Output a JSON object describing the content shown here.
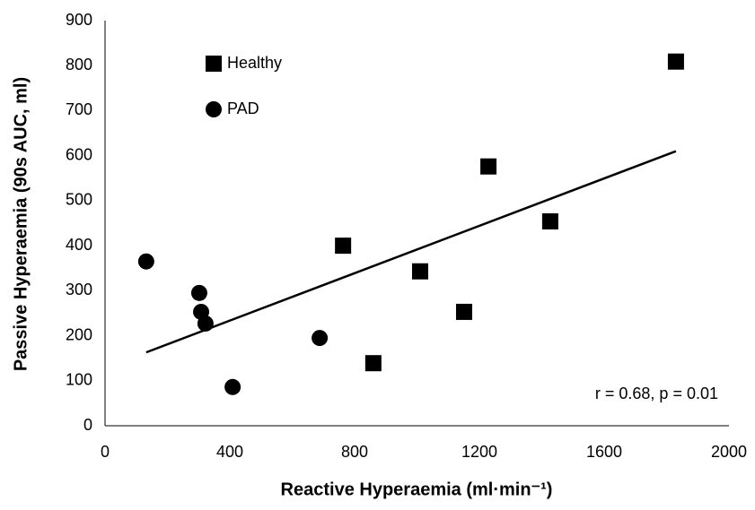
{
  "chart_data": {
    "type": "scatter",
    "x_label": "Reactive Hyperaemia (ml·min⁻¹)",
    "y_label": "Passive Hyperaemia (90s AUC, ml)",
    "annotation": "r = 0.68, p = 0.01",
    "series": [
      {
        "name": "Healthy",
        "color": "#000000",
        "marker": "square",
        "x": [
          1830,
          1229,
          1427,
          763,
          1010,
          1151,
          860
        ],
        "values": [
          809,
          576,
          454,
          400,
          343,
          253,
          139
        ]
      },
      {
        "name": "PAD",
        "color": "#000000",
        "marker": "circle",
        "x": [
          132,
          302,
          308,
          322,
          409,
          688
        ],
        "values": [
          365,
          295,
          253,
          227,
          86,
          195
        ]
      }
    ],
    "trendline": {
      "color": "#000000",
      "x": [
        132,
        1830
      ],
      "values": [
        163,
        610
      ]
    },
    "xlim": [
      0,
      2000
    ],
    "xticks": [
      0,
      400,
      800,
      1200,
      1600,
      2000
    ],
    "ylim": [
      0,
      900
    ],
    "yticks": [
      0,
      100,
      200,
      300,
      400,
      500,
      600,
      700,
      800,
      900
    ],
    "grid": false,
    "legend": "upper left"
  }
}
